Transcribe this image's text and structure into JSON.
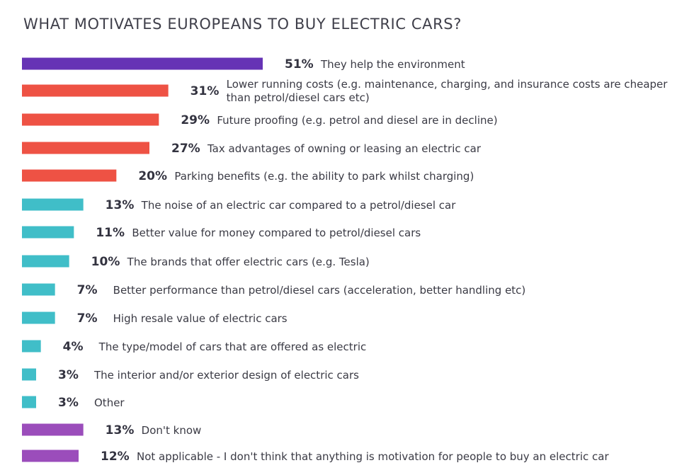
{
  "title": "WHAT MOTIVATES EUROPEANS TO BUY ELECTRIC CARS?",
  "colors": {
    "top": "#6633b5",
    "high": "#ee5244",
    "mid": "#40bec8",
    "neutral": "#9b4dbb"
  },
  "chart_data": {
    "type": "bar",
    "orientation": "horizontal",
    "title": "WHAT MOTIVATES EUROPEANS TO BUY ELECTRIC CARS?",
    "unit": "%",
    "xlim": [
      0,
      51
    ],
    "categories": [
      "They help the environment",
      "Lower running costs (e.g. maintenance, charging, and insurance costs are cheaper than petrol/diesel cars etc)",
      "Future proofing (e.g. petrol and diesel are in decline)",
      "Tax advantages of owning or leasing an electric car",
      "Parking benefits (e.g. the ability to park whilst charging)",
      "The noise of an electric car compared to a petrol/diesel car",
      "Better value for money compared to petrol/diesel cars",
      "The brands that offer electric cars (e.g. Tesla)",
      "Better performance than petrol/diesel cars (acceleration, better handling etc)",
      "High resale value of electric cars",
      "The type/model of cars that are offered as electric",
      "The interior and/or exterior design of electric cars",
      "Other",
      "Don't know",
      "Not applicable - I don't think that anything is motivation for people to buy an electric car"
    ],
    "label_lines": [
      [
        "They help the environment"
      ],
      [
        "Lower running costs (e.g. maintenance, charging, and insurance costs are cheaper",
        "than petrol/diesel cars etc)"
      ],
      [
        "Future proofing (e.g. petrol and diesel are in decline)"
      ],
      [
        "Tax advantages of owning or leasing an electric car"
      ],
      [
        "Parking benefits (e.g. the ability to park whilst charging)"
      ],
      [
        "The noise of an electric car compared to a petrol/diesel car"
      ],
      [
        "Better value for money compared to petrol/diesel cars"
      ],
      [
        "The brands that offer electric cars (e.g. Tesla)"
      ],
      [
        "Better performance than petrol/diesel cars (acceleration, better handling etc)"
      ],
      [
        "High resale value of electric cars"
      ],
      [
        "The type/model of cars that are offered as electric"
      ],
      [
        "The interior and/or exterior design of electric cars"
      ],
      [
        "Other"
      ],
      [
        "Don't know"
      ],
      [
        "Not applicable - I don't think that anything is motivation for people to buy an electric car"
      ]
    ],
    "values": [
      51,
      31,
      29,
      27,
      20,
      13,
      11,
      10,
      7,
      7,
      4,
      3,
      3,
      13,
      12
    ],
    "color_groups": [
      "top",
      "high",
      "high",
      "high",
      "high",
      "mid",
      "mid",
      "mid",
      "mid",
      "mid",
      "mid",
      "mid",
      "mid",
      "neutral",
      "neutral"
    ],
    "legend": false,
    "grid": false
  }
}
